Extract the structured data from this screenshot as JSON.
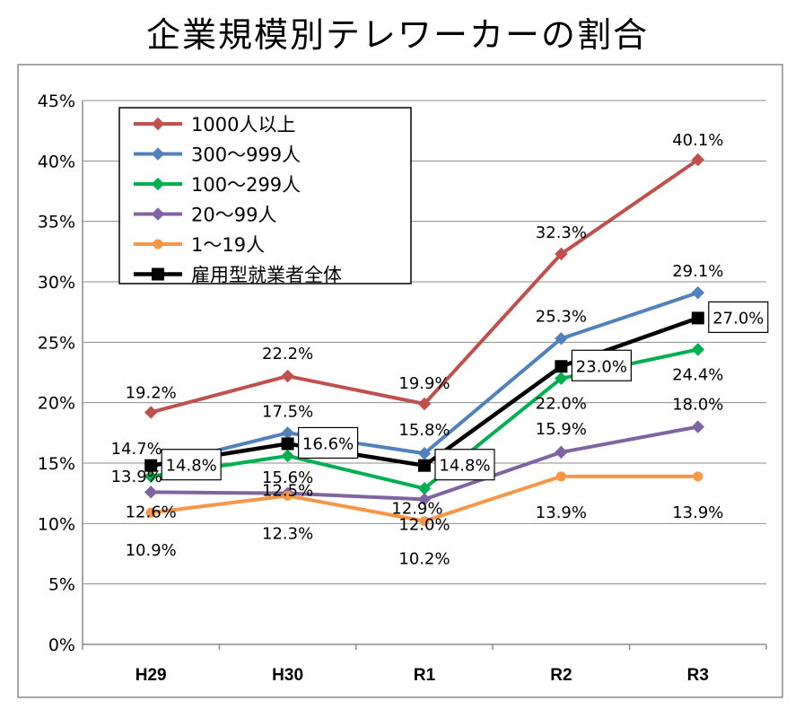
{
  "title": "企業規模別テレワーカーの割合",
  "chart_data": {
    "type": "line",
    "title": "企業規模別テレワーカーの割合",
    "xlabel": "",
    "ylabel": "",
    "categories": [
      "H29",
      "H30",
      "R1",
      "R2",
      "R3"
    ],
    "ylim": [
      0,
      45
    ],
    "yticks": [
      "0%",
      "5%",
      "10%",
      "15%",
      "20%",
      "25%",
      "30%",
      "35%",
      "40%",
      "45%"
    ],
    "grid": true,
    "legend_position": "top-left",
    "series": [
      {
        "name": "1000人以上",
        "color": "#c0504d",
        "marker": "diamond",
        "values": [
          19.2,
          22.2,
          19.9,
          32.3,
          40.1
        ],
        "labels": [
          "19.2%",
          "22.2%",
          "19.9%",
          "32.3%",
          "40.1%"
        ]
      },
      {
        "name": "300～999人",
        "color": "#4f81bd",
        "marker": "diamond",
        "values": [
          14.7,
          17.5,
          15.8,
          25.3,
          29.1
        ],
        "labels": [
          "14.7%",
          "17.5%",
          "15.8%",
          "25.3%",
          "29.1%"
        ]
      },
      {
        "name": "100～299人",
        "color": "#00b050",
        "marker": "diamond",
        "values": [
          13.9,
          15.6,
          12.9,
          22.0,
          24.4
        ],
        "labels": [
          "13.9%",
          "15.6%",
          "12.9%",
          "22.0%",
          "24.4%"
        ]
      },
      {
        "name": "20～99人",
        "color": "#8064a2",
        "marker": "diamond",
        "values": [
          12.6,
          12.5,
          12.0,
          15.9,
          18.0
        ],
        "labels": [
          "12.6%",
          "12.5%",
          "12.0%",
          "15.9%",
          "18.0%"
        ]
      },
      {
        "name": "1～19人",
        "color": "#f79646",
        "marker": "circle",
        "values": [
          10.9,
          12.3,
          10.2,
          13.9,
          13.9
        ],
        "labels": [
          "10.9%",
          "12.3%",
          "10.2%",
          "13.9%",
          "13.9%"
        ]
      },
      {
        "name": "雇用型就業者全体",
        "color": "#000000",
        "marker": "square",
        "values": [
          14.8,
          16.6,
          14.8,
          23.0,
          27.0
        ],
        "labels": [
          "14.8%",
          "16.6%",
          "14.8%",
          "23.0%",
          "27.0%"
        ]
      }
    ]
  }
}
